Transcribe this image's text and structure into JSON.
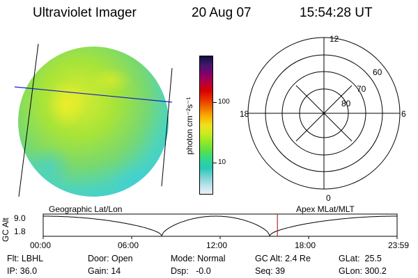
{
  "header": {
    "instrument": "Ultraviolet Imager",
    "date": "20 Aug 07",
    "time": "15:54:28 UT"
  },
  "colorbar": {
    "unit_label": "photon cm⁻²s⁻¹",
    "ticks": [
      "100",
      "10"
    ],
    "colors": [
      "#e8f2f6",
      "#b8e2ea",
      "#78d2d2",
      "#28c8b8",
      "#30d890",
      "#58e048",
      "#90e828",
      "#c8ec20",
      "#f0e020",
      "#f8b000",
      "#f07000",
      "#e83000",
      "#d80000",
      "#b00040",
      "#800070",
      "#401868",
      "#101040"
    ]
  },
  "polar_plot": {
    "top_label": "12",
    "left_label": "18",
    "right_label": "6",
    "bottom_label": "0",
    "ring_labels": [
      "60",
      "70",
      "80"
    ]
  },
  "timeline": {
    "left_title": "Geographic Lat/Lon",
    "right_title": "Apex MLat/MLT",
    "y_axis_label": "GC Alt",
    "y_ticks": [
      "9.0",
      "1.8"
    ],
    "x_ticks": [
      "00:00",
      "06:00",
      "12:00",
      "18:00",
      "23:59"
    ],
    "current_time_fraction": 0.6618
  },
  "status": {
    "flt": "Flt: LBHL",
    "ip": "IP: 36.0",
    "door": "Door: Open",
    "gain": "Gain: 14",
    "mode": "Mode: Normal",
    "dsp": "Dsp:   -0.0",
    "gc_alt": "GC Alt: 2.4 Re",
    "seq": "Seq: 39",
    "glat": "GLat:  25.5",
    "glon": "GLon: 300.2"
  }
}
